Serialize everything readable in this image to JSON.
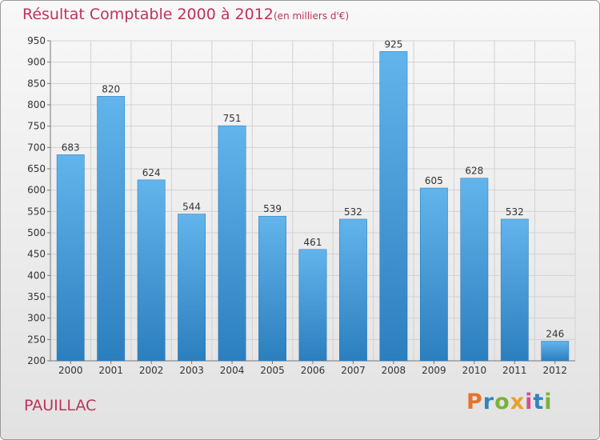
{
  "chart_data": {
    "type": "bar",
    "title": "Résultat Comptable 2000 à 2012",
    "subtitle": "(en milliers d'€)",
    "categories": [
      "2000",
      "2001",
      "2002",
      "2003",
      "2004",
      "2005",
      "2006",
      "2007",
      "2008",
      "2009",
      "2010",
      "2011",
      "2012"
    ],
    "values": [
      683,
      820,
      624,
      544,
      751,
      539,
      461,
      532,
      925,
      605,
      628,
      532,
      246
    ],
    "ylim": [
      200,
      950
    ],
    "yticks": [
      200,
      250,
      300,
      350,
      400,
      450,
      500,
      550,
      600,
      650,
      700,
      750,
      800,
      850,
      900,
      950
    ],
    "grid": true,
    "xlabel": "",
    "ylabel": "",
    "bar_color_top": "#62b4ec",
    "bar_color_bottom": "#2c7fbe"
  },
  "footer": {
    "town": "PAUILLAC",
    "brand": "Proxiti",
    "brand_colors": [
      "#e8732a",
      "#2e86c1",
      "#79b33a",
      "#e8a02a",
      "#d64f8f",
      "#2e86c1",
      "#79b33a"
    ]
  }
}
